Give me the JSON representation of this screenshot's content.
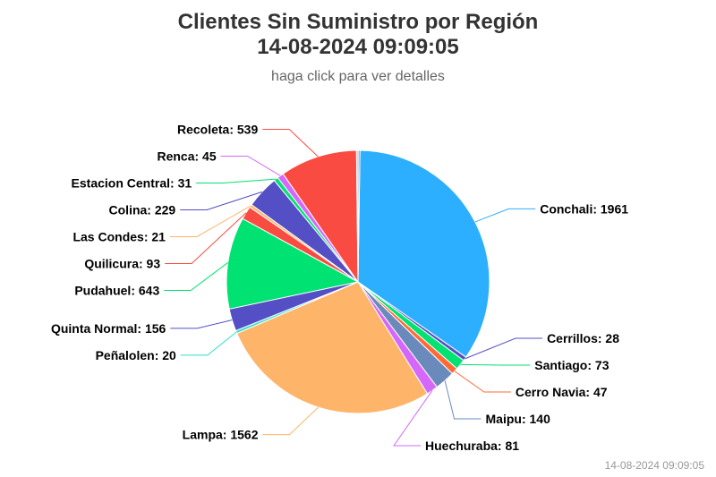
{
  "header": {
    "title_line1": "Clientes Sin Suministro por Región",
    "title_line2": "14-08-2024 09:09:05",
    "subtitle": "haga click para ver detalles"
  },
  "footer": {
    "timestamp": "14-08-2024 09:09:05"
  },
  "chart_data": {
    "type": "pie",
    "title": "Clientes Sin Suministro por Región 14-08-2024 09:09:05",
    "subtitle": "haga click para ver detalles",
    "slices": [
      {
        "name": "Conchali",
        "value": 1961,
        "color": "#2caffe"
      },
      {
        "name": "Cerrillos",
        "value": 28,
        "color": "#544fc5"
      },
      {
        "name": "Santiago",
        "value": 73,
        "color": "#00e272"
      },
      {
        "name": "Cerro Navia",
        "value": 47,
        "color": "#fe6a35"
      },
      {
        "name": "Maipu",
        "value": 140,
        "color": "#6b8abc"
      },
      {
        "name": "Huechuraba",
        "value": 81,
        "color": "#d568fb"
      },
      {
        "name": "Lampa",
        "value": 1562,
        "color": "#feb56a"
      },
      {
        "name": "Peñalolen",
        "value": 20,
        "color": "#2ee0ca"
      },
      {
        "name": "Quinta Normal",
        "value": 156,
        "color": "#544fc5"
      },
      {
        "name": "Pudahuel",
        "value": 643,
        "color": "#00e272"
      },
      {
        "name": "Quilicura",
        "value": 93,
        "color": "#fa4b42"
      },
      {
        "name": "Las Condes",
        "value": 21,
        "color": "#feb56a"
      },
      {
        "name": "Colina",
        "value": 229,
        "color": "#544fc5"
      },
      {
        "name": "Estacion Central",
        "value": 31,
        "color": "#00e272"
      },
      {
        "name": "Renca",
        "value": 45,
        "color": "#d568fb"
      },
      {
        "name": "Recoleta",
        "value": 539,
        "color": "#fa4b42"
      },
      {
        "name": "",
        "value": 12,
        "color": "#feb56a"
      },
      {
        "name": "",
        "value": 12,
        "color": "#6b8abc"
      }
    ]
  }
}
